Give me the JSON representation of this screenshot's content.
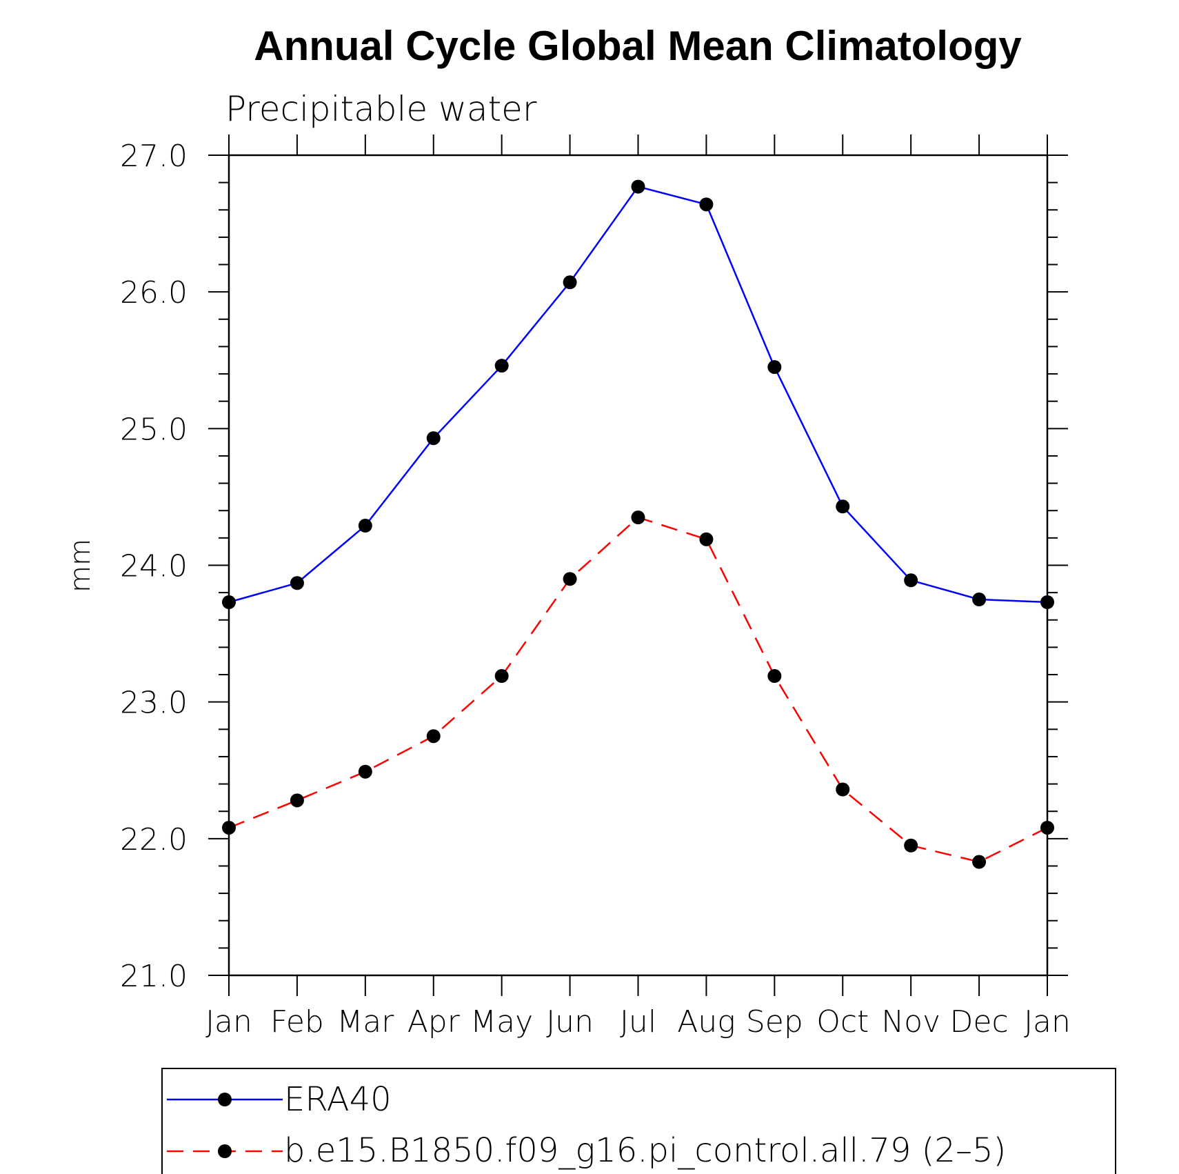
{
  "chart_data": {
    "type": "line",
    "title": "Annual Cycle Global Mean Climatology",
    "subtitle": "Precipitable water",
    "xlabel": "",
    "ylabel": "mm",
    "categories": [
      "Jan",
      "Feb",
      "Mar",
      "Apr",
      "May",
      "Jun",
      "Jul",
      "Aug",
      "Sep",
      "Oct",
      "Nov",
      "Dec",
      "Jan"
    ],
    "ylim": [
      21.0,
      27.0
    ],
    "yticks": [
      "21.0",
      "22.0",
      "23.0",
      "24.0",
      "25.0",
      "26.0",
      "27.0"
    ],
    "grid": false,
    "legend_position": "bottom",
    "series": [
      {
        "name": "ERA40",
        "color": "#0000ff",
        "line_style": "solid",
        "marker": "filled-circle",
        "values": [
          23.73,
          23.87,
          24.29,
          24.93,
          25.46,
          26.07,
          26.77,
          26.64,
          25.45,
          24.43,
          23.89,
          23.75,
          23.73
        ]
      },
      {
        "name": "b.e15.B1850.f09_g16.pi_control.all.79 (2–5)",
        "color": "#ff0000",
        "line_style": "dashed",
        "marker": "filled-circle",
        "values": [
          22.08,
          22.28,
          22.49,
          22.75,
          23.19,
          23.9,
          24.35,
          24.19,
          23.19,
          22.36,
          21.95,
          21.83,
          22.08
        ]
      }
    ]
  }
}
